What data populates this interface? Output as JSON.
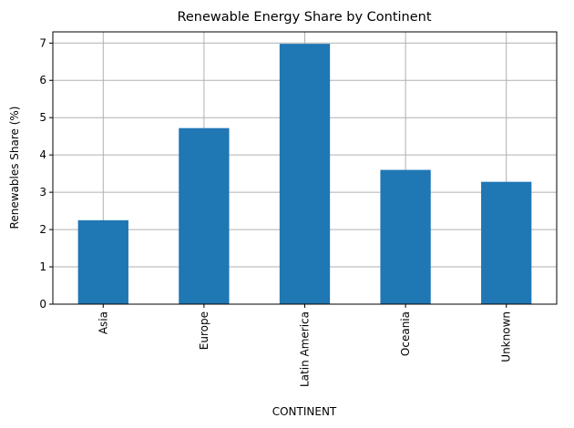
{
  "chart_data": {
    "type": "bar",
    "title": "Renewable Energy Share by Continent",
    "xlabel": "CONTINENT",
    "ylabel": "Renewables Share (%)",
    "categories": [
      "Asia",
      "Europe",
      "Latin America",
      "Oceania",
      "Unknown"
    ],
    "values": [
      2.25,
      4.72,
      6.98,
      3.6,
      3.28
    ],
    "ylim": [
      0,
      7.3
    ],
    "yticks": [
      0,
      1,
      2,
      3,
      4,
      5,
      6,
      7
    ],
    "grid": true,
    "bar_color": "#1f77b4"
  }
}
